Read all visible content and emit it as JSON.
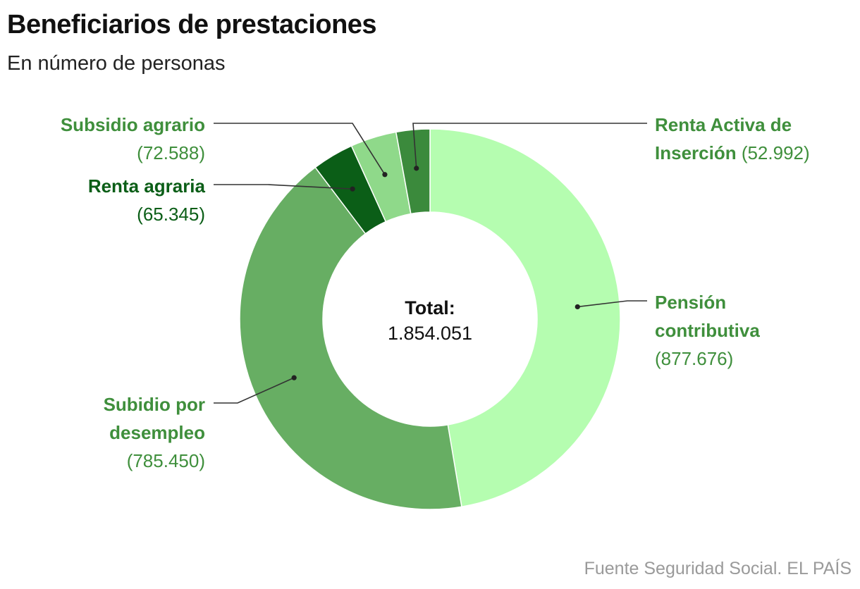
{
  "title": "Beneficiarios de prestaciones",
  "subtitle": "En número de personas",
  "source": "Fuente Seguridad Social. EL PAÍS",
  "chart_data": {
    "type": "pie",
    "variant": "donut",
    "title": "Beneficiarios de prestaciones",
    "subtitle": "En número de personas",
    "unit": "personas",
    "center_label": "Total:",
    "center_value_text": "1.854.051",
    "total": 1854051,
    "slices": [
      {
        "name": "Pensión contributiva",
        "name_lines": [
          "Pensión",
          "contributiva"
        ],
        "value": 877676,
        "value_text": "(877.676)",
        "color": "#b5fdb0",
        "label_color": "#3f8f3c"
      },
      {
        "name": "Subidio por desempleo",
        "name_lines": [
          "Subidio por",
          "desempleo"
        ],
        "value": 785450,
        "value_text": "(785.450)",
        "color": "#67ae63",
        "label_color": "#3f8f3c"
      },
      {
        "name": "Renta agraria",
        "name_lines": [
          "Renta agraria"
        ],
        "value": 65345,
        "value_text": "(65.345)",
        "color": "#0b5e17",
        "label_color": "#0b5e17"
      },
      {
        "name": "Subsidio agrario",
        "name_lines": [
          "Subsidio agrario"
        ],
        "value": 72588,
        "value_text": "(72.588)",
        "color": "#8fd98a",
        "label_color": "#3f8f3c"
      },
      {
        "name": "Renta Activa de Inserción",
        "name_lines": [
          "Renta Activa de",
          "Inserción"
        ],
        "value": 52992,
        "value_text": "(52.992)",
        "color": "#3b8a3c",
        "label_color": "#3f8f3c"
      }
    ]
  }
}
